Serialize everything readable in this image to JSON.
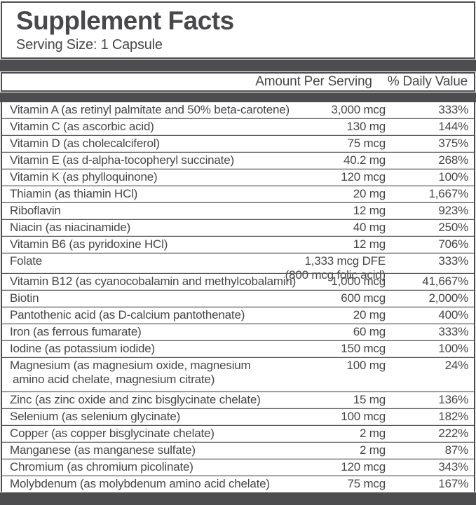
{
  "label": {
    "title": "Supplement Facts",
    "serving_size": "Serving Size: 1 Capsule",
    "columns": {
      "amount": "Amount Per Serving",
      "dv": "% Daily Value"
    },
    "rows": [
      {
        "name": "Vitamin A (as retinyl palmitate and 50% beta-carotene)",
        "amount": "3,000 mcg",
        "dv": "333%"
      },
      {
        "name": "Vitamin C (as ascorbic acid)",
        "amount": "130 mg",
        "dv": "144%"
      },
      {
        "name": "Vitamin D (as cholecalciferol)",
        "amount": "75 mcg",
        "dv": "375%"
      },
      {
        "name": "Vitamin E (as d-alpha-tocopheryl succinate)",
        "amount": "40.2 mg",
        "dv": "268%"
      },
      {
        "name": "Vitamin K (as phylloquinone)",
        "amount": "120 mcg",
        "dv": "100%"
      },
      {
        "name": "Thiamin (as thiamin HCl)",
        "amount": "20 mg",
        "dv": "1,667%"
      },
      {
        "name": "Riboflavin",
        "amount": "12 mg",
        "dv": "923%"
      },
      {
        "name": "Niacin (as niacinamide)",
        "amount": "40 mg",
        "dv": "250%"
      },
      {
        "name": "Vitamin B6 (as pyridoxine HCl)",
        "amount": "12 mg",
        "dv": "706%"
      },
      {
        "name": "Folate",
        "amount": "1,333 mcg DFE",
        "amount2": "(800 mcg folic acid)",
        "dv": "333%"
      },
      {
        "name": "Vitamin B12 (as cyanocobalamin and methylcobalamin)",
        "amount": "1,000 mcg",
        "dv": "41,667%"
      },
      {
        "name": "Biotin",
        "amount": "600 mcg",
        "dv": "2,000%"
      },
      {
        "name": "Pantothenic acid (as D-calcium pantothenate)",
        "amount": "20 mg",
        "dv": "400%"
      },
      {
        "name": "Iron (as ferrous fumarate)",
        "amount": "60 mg",
        "dv": "333%"
      },
      {
        "name": "Iodine (as potassium iodide)",
        "amount": "150 mcg",
        "dv": "100%"
      },
      {
        "name": "Magnesium (as magnesium oxide, magnesium",
        "name2": "amino acid chelate, magnesium citrate)",
        "amount": "100 mg",
        "dv": "24%"
      },
      {
        "name": "Zinc (as zinc oxide and zinc bisglycinate chelate)",
        "amount": "15 mg",
        "dv": "136%"
      },
      {
        "name": "Selenium (as selenium glycinate)",
        "amount": "100 mcg",
        "dv": "182%"
      },
      {
        "name": "Copper (as copper bisglycinate chelate)",
        "amount": "2 mg",
        "dv": "222%"
      },
      {
        "name": "Manganese (as manganese sulfate)",
        "amount": "2 mg",
        "dv": "87%"
      },
      {
        "name": "Chromium (as chromium picolinate)",
        "amount": "120 mcg",
        "dv": "343%"
      },
      {
        "name": "Molybdenum (as molybdenum amino acid chelate)",
        "amount": "75 mcg",
        "dv": "167%"
      }
    ],
    "colors": {
      "bar": "#4d4d4f",
      "text": "#474749",
      "separator_light": "#d9d9d9",
      "panel_background": "#ffffff"
    }
  }
}
